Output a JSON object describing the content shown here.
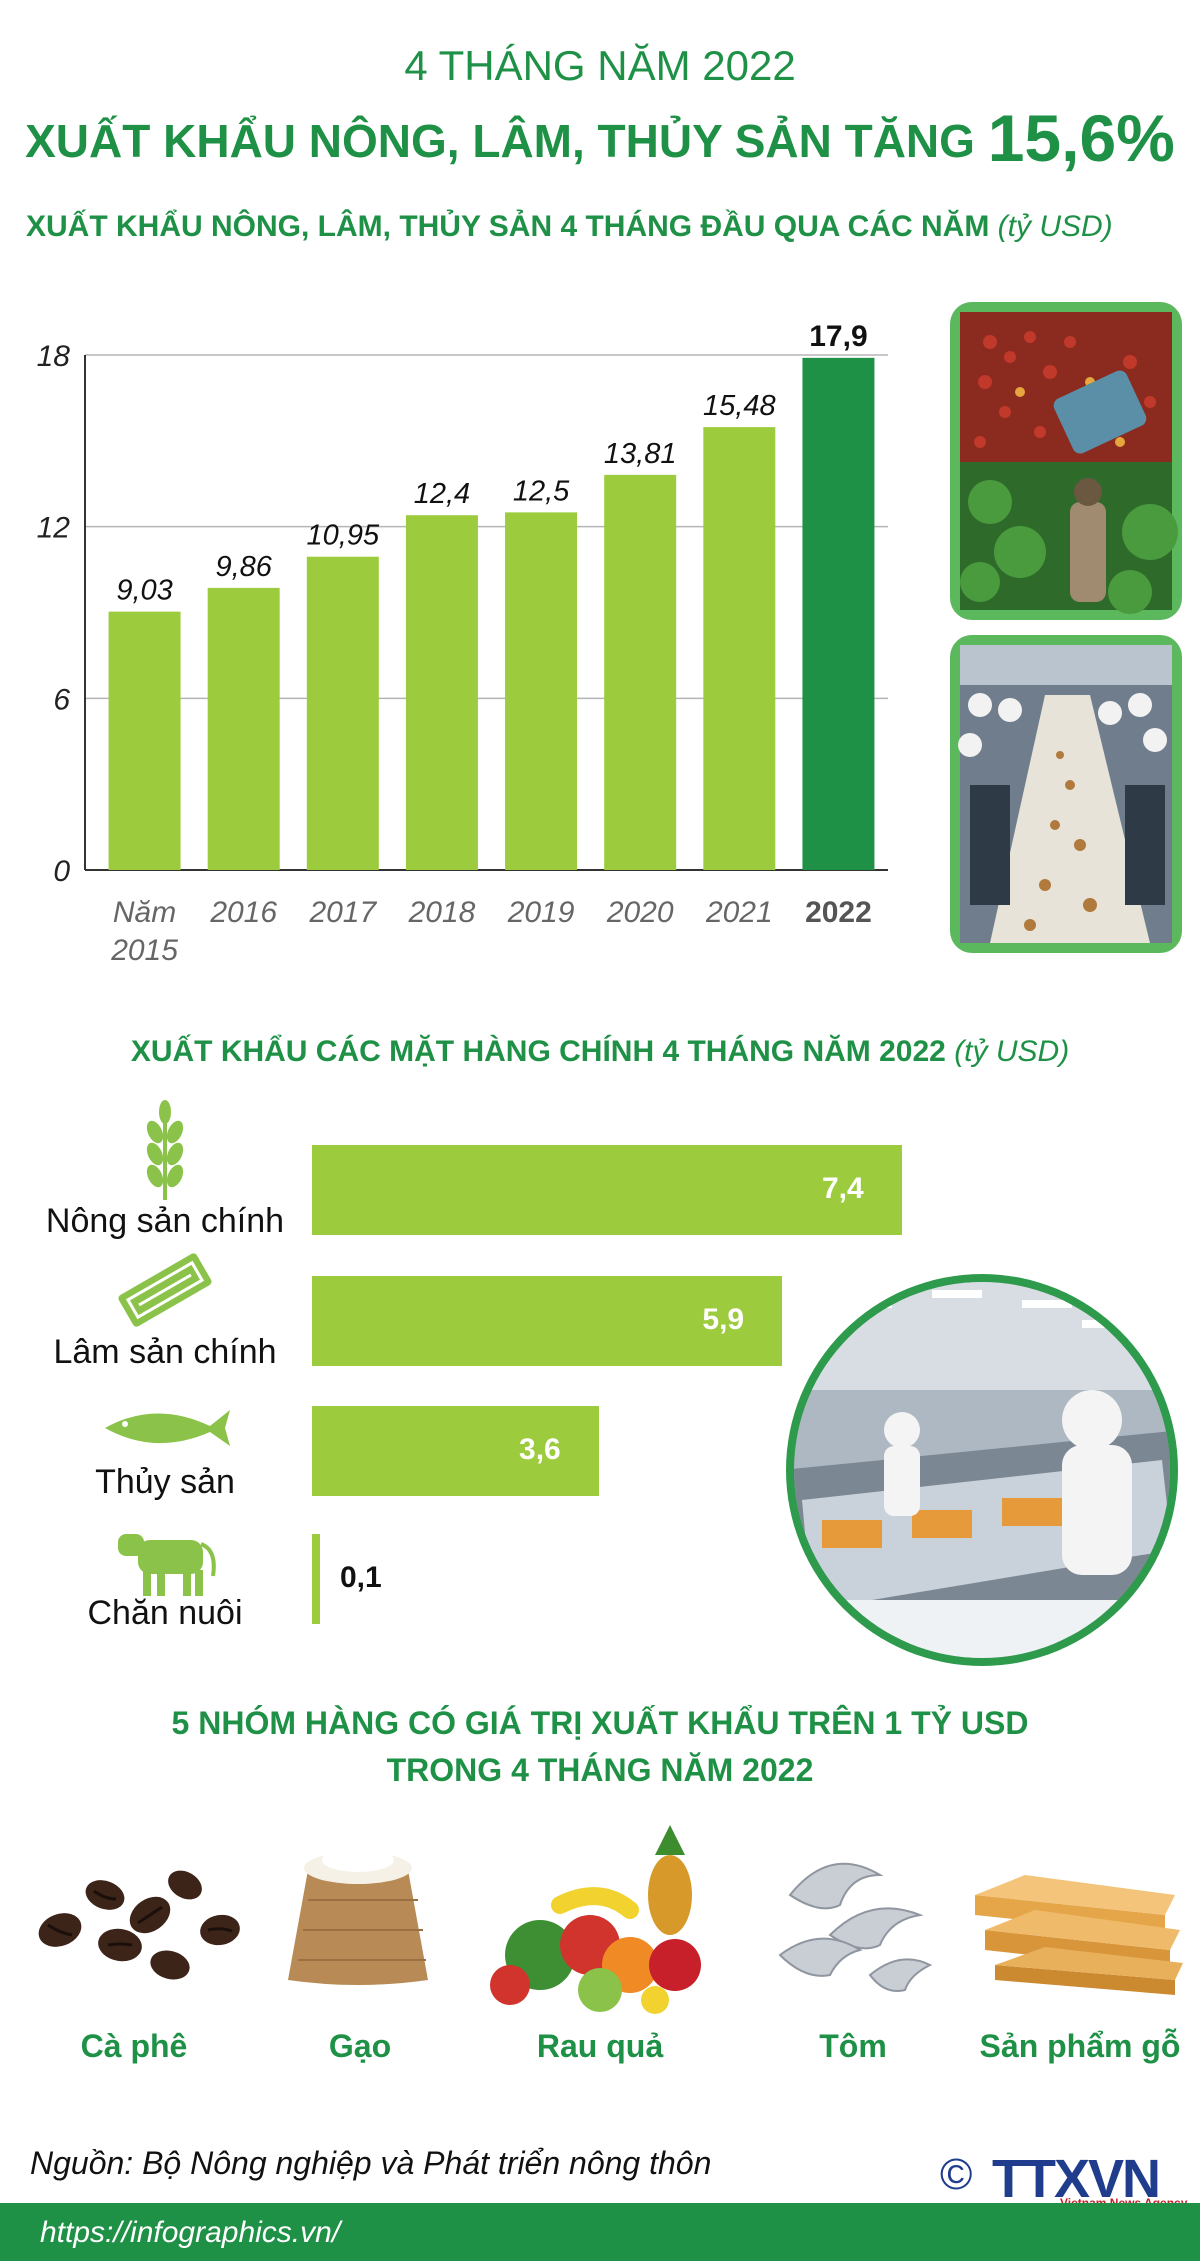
{
  "header": {
    "subtitle": "4 THÁNG NĂM 2022",
    "title_text": "XUẤT KHẨU NÔNG, LÂM, THỦY SẢN TĂNG ",
    "title_highlight": "15,6%"
  },
  "section1": {
    "title": "XUẤT KHẨU NÔNG, LÂM, THỦY SẢN 4 THÁNG ĐẦU QUA CÁC NĂM ",
    "unit": "(tỷ USD)"
  },
  "chart_data": [
    {
      "type": "bar",
      "categories": [
        "Năm 2015",
        "2016",
        "2017",
        "2018",
        "2019",
        "2020",
        "2021",
        "2022"
      ],
      "values": [
        9.03,
        9.86,
        10.95,
        12.4,
        12.5,
        13.81,
        15.48,
        17.9
      ],
      "value_labels": [
        "9,03",
        "9,86",
        "10,95",
        "12,4",
        "12,5",
        "13,81",
        "15,48",
        "17,9"
      ],
      "yticks": [
        "0",
        "6",
        "12",
        "18"
      ],
      "ylim": [
        0,
        18
      ],
      "title": "XUẤT KHẨU NÔNG, LÂM, THỦY SẢN 4 THÁNG ĐẦU QUA CÁC NĂM (tỷ USD)",
      "xlabel": "",
      "ylabel": "",
      "grid": true,
      "colors": {
        "bar": "#9ccc3d",
        "highlight": "#1e9146"
      }
    },
    {
      "type": "bar",
      "orientation": "horizontal",
      "categories": [
        "Nông sản chính",
        "Lâm sản chính",
        "Thủy sản",
        "Chăn nuôi"
      ],
      "values": [
        7.4,
        5.9,
        3.6,
        0.1
      ],
      "value_labels": [
        "7,4",
        "5,9",
        "3,6",
        "0,1"
      ],
      "title": "XUẤT KHẨU CÁC MẶT HÀNG CHÍNH 4 THÁNG NĂM 2022 (tỷ USD)",
      "icons": [
        "wheat-icon",
        "wood-log-icon",
        "fish-icon",
        "cow-icon"
      ],
      "colors": {
        "bar": "#9ccc3d"
      }
    }
  ],
  "section2": {
    "title": "XUẤT KHẨU CÁC MẶT HÀNG CHÍNH 4 THÁNG NĂM 2022 ",
    "unit": "(tỷ USD)"
  },
  "section3": {
    "title_line1": "5 NHÓM HÀNG CÓ GIÁ TRỊ XUẤT KHẨU TRÊN 1 TỶ USD",
    "title_line2": "TRONG 4 THÁNG NĂM 2022",
    "products": [
      {
        "label": "Cà phê",
        "icon": "coffee-beans-icon"
      },
      {
        "label": "Gạo",
        "icon": "rice-sack-icon"
      },
      {
        "label": "Rau quả",
        "icon": "fruit-vegetable-icon"
      },
      {
        "label": "Tôm",
        "icon": "shrimp-icon"
      },
      {
        "label": "Sản phẩm gỗ",
        "icon": "wood-planks-icon"
      }
    ]
  },
  "footer": {
    "source": "Nguồn: Bộ Nông nghiệp và Phát triển nông thôn",
    "url": "https://infographics.vn/",
    "logo_text": "TTXVN",
    "logo_sub": "Vietnam News Agency",
    "copyright": "©"
  },
  "colors": {
    "primary_green": "#1e9146",
    "bar_green": "#9ccc3d"
  }
}
